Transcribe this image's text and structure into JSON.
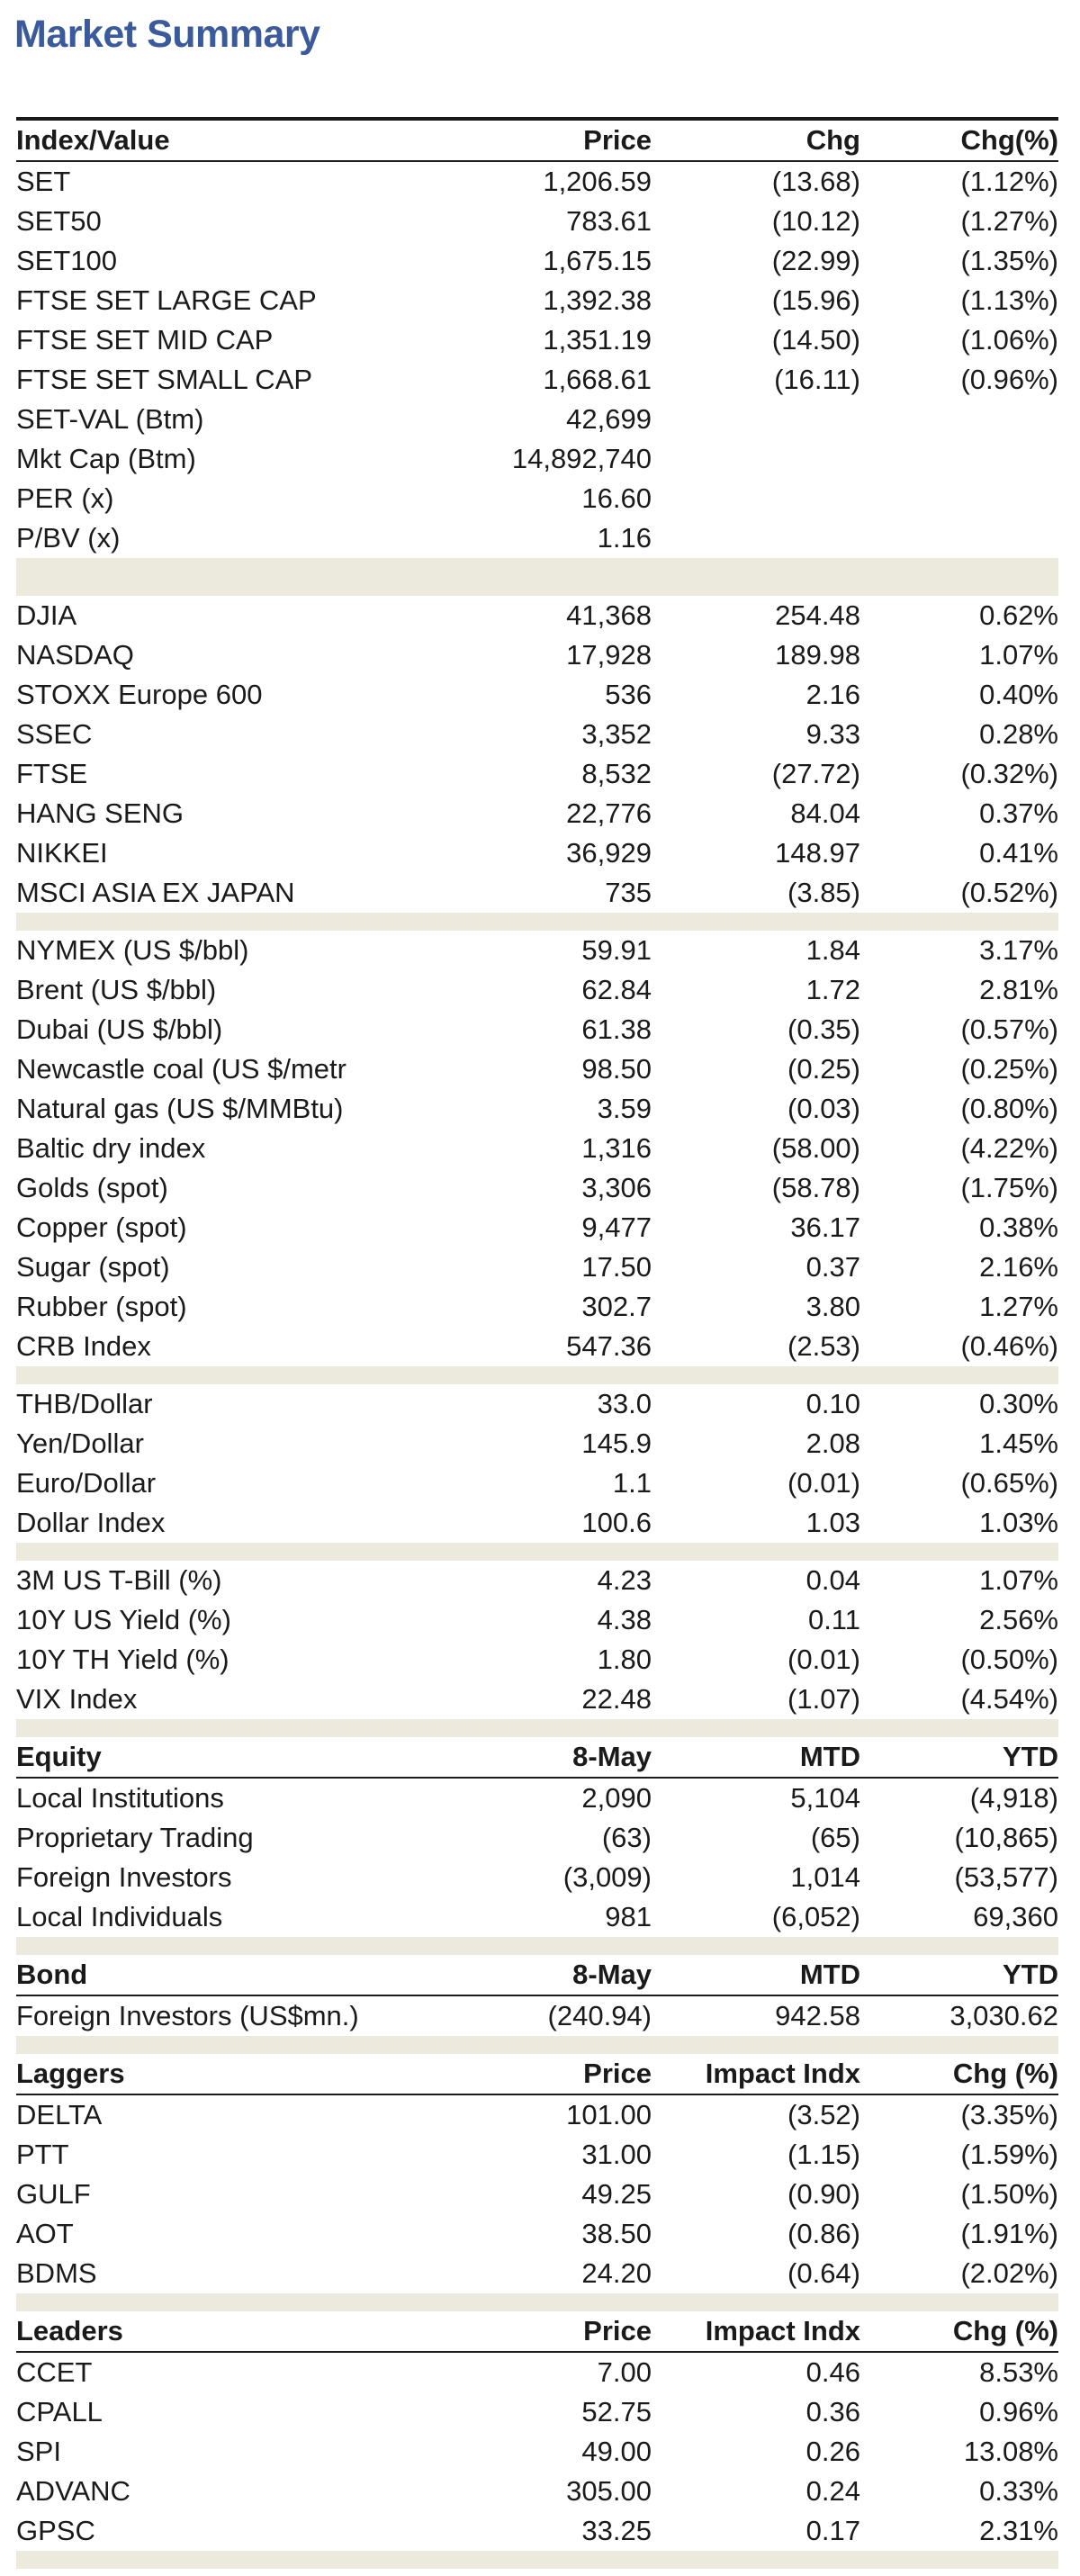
{
  "title": "Market Summary",
  "sections": [
    {
      "header": [
        "Index/Value",
        "Price",
        "Chg",
        "Chg(%)"
      ],
      "rows": [
        [
          "SET",
          "1,206.59",
          "(13.68)",
          "(1.12%)"
        ],
        [
          "SET50",
          "783.61",
          "(10.12)",
          "(1.27%)"
        ],
        [
          "SET100",
          "1,675.15",
          "(22.99)",
          "(1.35%)"
        ],
        [
          "FTSE SET LARGE CAP",
          "1,392.38",
          "(15.96)",
          "(1.13%)"
        ],
        [
          "FTSE SET MID CAP",
          "1,351.19",
          "(14.50)",
          "(1.06%)"
        ],
        [
          "FTSE SET SMALL CAP",
          "1,668.61",
          "(16.11)",
          "(0.96%)"
        ],
        [
          "SET-VAL (Btm)",
          "42,699",
          "",
          ""
        ],
        [
          "Mkt Cap (Btm)",
          "14,892,740",
          "",
          ""
        ],
        [
          "PER (x)",
          "16.60",
          "",
          ""
        ],
        [
          "P/BV (x)",
          "1.16",
          "",
          ""
        ]
      ]
    },
    {
      "rows": [
        [
          "DJIA",
          "41,368",
          "254.48",
          "0.62%"
        ],
        [
          "NASDAQ",
          "17,928",
          "189.98",
          "1.07%"
        ],
        [
          "STOXX Europe 600",
          "536",
          "2.16",
          "0.40%"
        ],
        [
          "SSEC",
          "3,352",
          "9.33",
          "0.28%"
        ],
        [
          "FTSE",
          "8,532",
          "(27.72)",
          "(0.32%)"
        ],
        [
          "HANG SENG",
          "22,776",
          "84.04",
          "0.37%"
        ],
        [
          "NIKKEI",
          "36,929",
          "148.97",
          "0.41%"
        ],
        [
          "MSCI ASIA EX JAPAN",
          "735",
          "(3.85)",
          "(0.52%)"
        ]
      ]
    },
    {
      "rows": [
        [
          "NYMEX (US $/bbl)",
          "59.91",
          "1.84",
          "3.17%"
        ],
        [
          "Brent (US $/bbl)",
          "62.84",
          "1.72",
          "2.81%"
        ],
        [
          "Dubai (US $/bbl)",
          "61.38",
          "(0.35)",
          "(0.57%)"
        ],
        [
          "Newcastle coal (US $/metr",
          "98.50",
          "(0.25)",
          "(0.25%)"
        ],
        [
          "Natural gas (US $/MMBtu)",
          "3.59",
          "(0.03)",
          "(0.80%)"
        ],
        [
          "Baltic dry index",
          "1,316",
          "(58.00)",
          "(4.22%)"
        ],
        [
          "Golds (spot)",
          "3,306",
          "(58.78)",
          "(1.75%)"
        ],
        [
          "Copper (spot)",
          "9,477",
          "36.17",
          "0.38%"
        ],
        [
          "Sugar (spot)",
          "17.50",
          "0.37",
          "2.16%"
        ],
        [
          "Rubber (spot)",
          "302.7",
          "3.80",
          "1.27%"
        ],
        [
          "CRB Index",
          "547.36",
          "(2.53)",
          "(0.46%)"
        ]
      ]
    },
    {
      "rows": [
        [
          "THB/Dollar",
          "33.0",
          "0.10",
          "0.30%"
        ],
        [
          "Yen/Dollar",
          "145.9",
          "2.08",
          "1.45%"
        ],
        [
          "Euro/Dollar",
          "1.1",
          "(0.01)",
          "(0.65%)"
        ],
        [
          "Dollar Index",
          "100.6",
          "1.03",
          "1.03%"
        ]
      ]
    },
    {
      "rows": [
        [
          "3M US T-Bill (%)",
          "4.23",
          "0.04",
          "1.07%"
        ],
        [
          "10Y US Yield (%)",
          "4.38",
          "0.11",
          "2.56%"
        ],
        [
          "10Y TH Yield (%)",
          "1.80",
          "(0.01)",
          "(0.50%)"
        ],
        [
          "VIX Index",
          "22.48",
          "(1.07)",
          "(4.54%)"
        ]
      ]
    },
    {
      "header": [
        "Equity",
        "8-May",
        "MTD",
        "YTD"
      ],
      "rows": [
        [
          "Local Institutions",
          "2,090",
          "5,104",
          "(4,918)"
        ],
        [
          "Proprietary Trading",
          "(63)",
          "(65)",
          "(10,865)"
        ],
        [
          "Foreign Investors",
          "(3,009)",
          "1,014",
          "(53,577)"
        ],
        [
          "Local Individuals",
          "981",
          "(6,052)",
          "69,360"
        ]
      ]
    },
    {
      "header": [
        "Bond",
        "8-May",
        "MTD",
        "YTD"
      ],
      "rows": [
        [
          "Foreign Investors (US$mn.)",
          "(240.94)",
          "942.58",
          "3,030.62"
        ]
      ]
    },
    {
      "header": [
        "Laggers",
        "Price",
        "Impact Indx",
        "Chg (%)"
      ],
      "rows": [
        [
          "DELTA",
          "101.00",
          "(3.52)",
          "(3.35%)"
        ],
        [
          "PTT",
          "31.00",
          "(1.15)",
          "(1.59%)"
        ],
        [
          "GULF",
          "49.25",
          "(0.90)",
          "(1.50%)"
        ],
        [
          "AOT",
          "38.50",
          "(0.86)",
          "(1.91%)"
        ],
        [
          "BDMS",
          "24.20",
          "(0.64)",
          "(2.02%)"
        ]
      ]
    },
    {
      "header": [
        "Leaders",
        "Price",
        "Impact Indx",
        "Chg (%)"
      ],
      "rows": [
        [
          "CCET",
          "7.00",
          "0.46",
          "8.53%"
        ],
        [
          "CPALL",
          "52.75",
          "0.36",
          "0.96%"
        ],
        [
          "SPI",
          "49.00",
          "0.26",
          "13.08%"
        ],
        [
          "ADVANC",
          "305.00",
          "0.24",
          "0.33%"
        ],
        [
          "GPSC",
          "33.25",
          "0.17",
          "2.31%"
        ]
      ]
    }
  ]
}
